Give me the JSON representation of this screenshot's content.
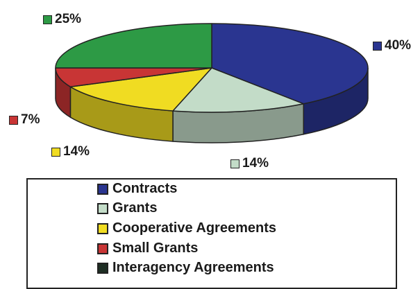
{
  "chart_data": {
    "type": "pie",
    "title": "",
    "style": "3d",
    "slices": [
      {
        "label": "Contracts",
        "value": 40,
        "display": "40%",
        "color": "#2a3590"
      },
      {
        "label": "Grants",
        "value": 14,
        "display": "14%",
        "color": "#c3dcc8"
      },
      {
        "label": "Cooperative Agreements",
        "value": 14,
        "display": "14%",
        "color": "#f0dc22"
      },
      {
        "label": "Small Grants",
        "value": 7,
        "display": "7%",
        "color": "#c83535"
      },
      {
        "label": "Interagency Agreements",
        "value": 0,
        "display": "",
        "color": "#1e2e24"
      },
      {
        "label": "",
        "value": 25,
        "display": "25%",
        "color": "#2d9a45"
      }
    ],
    "legend_placement": "bottom"
  },
  "legend": {
    "items": [
      {
        "label": "Contracts",
        "color": "#2a3590"
      },
      {
        "label": "Grants",
        "color": "#c3dcc8"
      },
      {
        "label": "Cooperative Agreements",
        "color": "#f0dc22"
      },
      {
        "label": "Small Grants",
        "color": "#c83535"
      },
      {
        "label": "Interagency Agreements",
        "color": "#1e2e24"
      }
    ]
  }
}
